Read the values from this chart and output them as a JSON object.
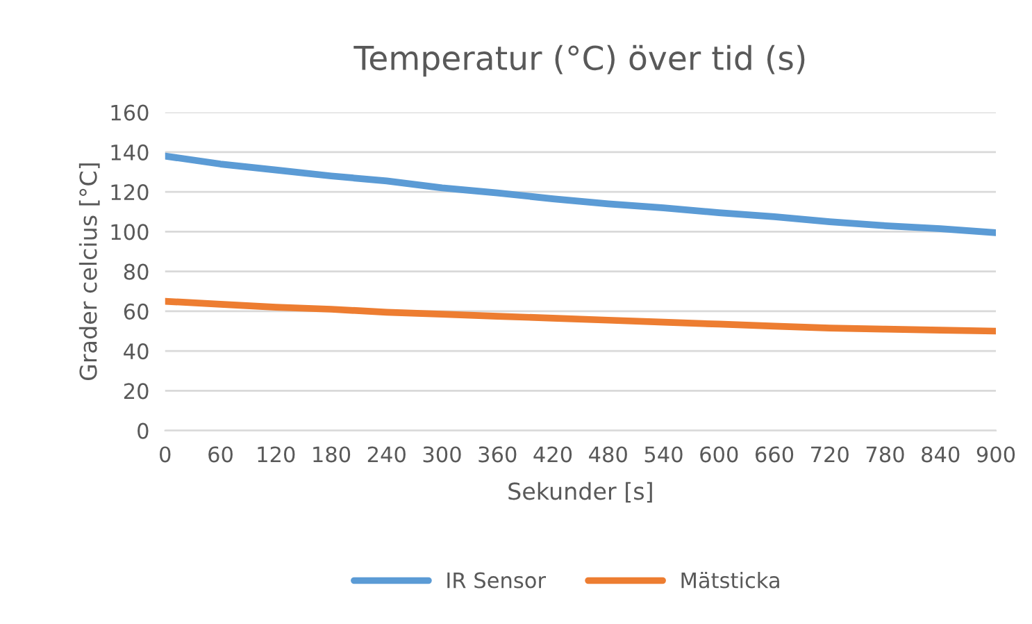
{
  "chart_data": {
    "type": "line",
    "title": "Temperatur (°C) över tid (s)",
    "xlabel": "Sekunder [s]",
    "ylabel": "Grader celcius [°C]",
    "x": [
      0,
      60,
      120,
      180,
      240,
      300,
      360,
      420,
      480,
      540,
      600,
      660,
      720,
      780,
      840,
      900
    ],
    "series": [
      {
        "name": "IR Sensor",
        "color": "#5b9bd5",
        "values": [
          138,
          134,
          131,
          128,
          125.5,
          122,
          119.5,
          116.5,
          114,
          112,
          109.5,
          107.5,
          105,
          103,
          101.5,
          99.5
        ]
      },
      {
        "name": "Mätsticka",
        "color": "#ed7d31",
        "values": [
          65,
          63.5,
          62,
          61,
          59.5,
          58.5,
          57.5,
          56.5,
          55.5,
          54.5,
          53.5,
          52.5,
          51.5,
          51,
          50.5,
          50
        ]
      }
    ],
    "xlim": [
      0,
      900
    ],
    "xticks": [
      0,
      60,
      120,
      180,
      240,
      300,
      360,
      420,
      480,
      540,
      600,
      660,
      720,
      780,
      840,
      900
    ],
    "ylim": [
      0,
      160
    ],
    "yticks": [
      0,
      20,
      40,
      60,
      80,
      100,
      120,
      140,
      160
    ],
    "grid": "y",
    "legend": "bottom",
    "marker": "none",
    "line_style": "solid"
  }
}
